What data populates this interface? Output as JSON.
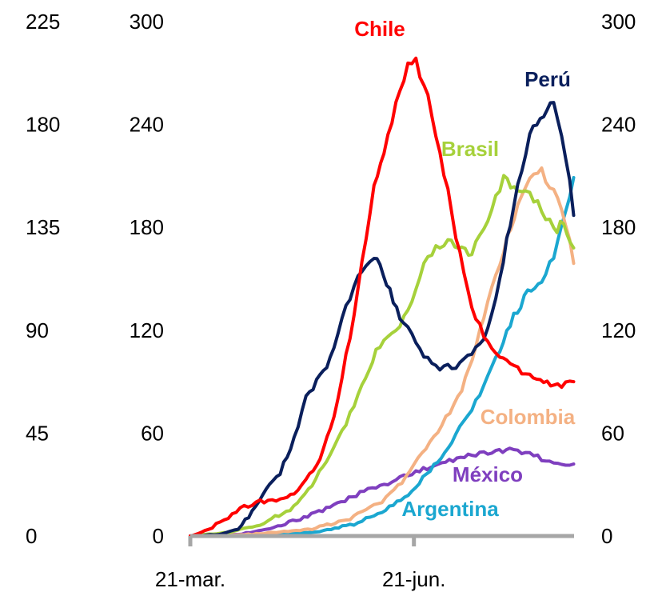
{
  "chart_data": {
    "type": "line",
    "title": "",
    "xlabel": "",
    "x_tick_labels": [
      "21-mar.",
      "21-jun."
    ],
    "left_outer_axis": {
      "ticks": [
        0,
        45,
        90,
        135,
        180,
        225
      ],
      "ylim": [
        0,
        225
      ]
    },
    "left_inner_axis": {
      "ticks": [
        0,
        60,
        120,
        180,
        240,
        300
      ],
      "ylim": [
        0,
        300
      ]
    },
    "right_axis": {
      "ticks": [
        0,
        60,
        120,
        180,
        240,
        300
      ],
      "ylim": [
        0,
        300
      ]
    },
    "xlim": [
      "2020-03-01",
      "2020-09-10"
    ],
    "grid": false,
    "legend": "direct labels",
    "series": [
      {
        "name": "Chile",
        "color": "#ff0000",
        "axis": "left",
        "points": [
          [
            "2020-03-01",
            0
          ],
          [
            "2020-03-10",
            4
          ],
          [
            "2020-03-20",
            11
          ],
          [
            "2020-03-28",
            17
          ],
          [
            "2020-04-05",
            20
          ],
          [
            "2020-04-15",
            21
          ],
          [
            "2020-04-22",
            24
          ],
          [
            "2020-04-28",
            32
          ],
          [
            "2020-05-05",
            45
          ],
          [
            "2020-05-12",
            70
          ],
          [
            "2020-05-18",
            105
          ],
          [
            "2020-05-22",
            127
          ],
          [
            "2020-05-26",
            160
          ],
          [
            "2020-06-01",
            205
          ],
          [
            "2020-06-06",
            222
          ],
          [
            "2020-06-12",
            252
          ],
          [
            "2020-06-18",
            275
          ],
          [
            "2020-06-22",
            276
          ],
          [
            "2020-06-28",
            258
          ],
          [
            "2020-07-04",
            225
          ],
          [
            "2020-07-10",
            188
          ],
          [
            "2020-07-16",
            153
          ],
          [
            "2020-07-22",
            127
          ],
          [
            "2020-07-28",
            112
          ],
          [
            "2020-08-03",
            104
          ],
          [
            "2020-08-10",
            98
          ],
          [
            "2020-08-18",
            94
          ],
          [
            "2020-08-25",
            89
          ],
          [
            "2020-09-01",
            87
          ],
          [
            "2020-09-07",
            89
          ],
          [
            "2020-09-09",
            90
          ]
        ]
      },
      {
        "name": "Perú",
        "color": "#0a1f5c",
        "axis": "left",
        "points": [
          [
            "2020-03-01",
            0
          ],
          [
            "2020-03-15",
            1
          ],
          [
            "2020-03-25",
            4
          ],
          [
            "2020-04-01",
            14
          ],
          [
            "2020-04-08",
            28
          ],
          [
            "2020-04-15",
            37
          ],
          [
            "2020-04-22",
            57
          ],
          [
            "2020-04-28",
            80
          ],
          [
            "2020-05-05",
            93
          ],
          [
            "2020-05-10",
            103
          ],
          [
            "2020-05-16",
            125
          ],
          [
            "2020-05-22",
            147
          ],
          [
            "2020-05-26",
            156
          ],
          [
            "2020-06-01",
            161
          ],
          [
            "2020-06-04",
            160
          ],
          [
            "2020-06-09",
            142
          ],
          [
            "2020-06-14",
            127
          ],
          [
            "2020-06-20",
            118
          ],
          [
            "2020-06-26",
            106
          ],
          [
            "2020-07-02",
            99
          ],
          [
            "2020-07-10",
            98
          ],
          [
            "2020-07-18",
            104
          ],
          [
            "2020-07-26",
            115
          ],
          [
            "2020-08-03",
            148
          ],
          [
            "2020-08-10",
            195
          ],
          [
            "2020-08-18",
            233
          ],
          [
            "2020-08-25",
            246
          ],
          [
            "2020-08-30",
            252
          ],
          [
            "2020-09-05",
            222
          ],
          [
            "2020-09-09",
            187
          ]
        ]
      },
      {
        "name": "Brasil",
        "color": "#a6d13b",
        "axis": "left",
        "points": [
          [
            "2020-03-01",
            0
          ],
          [
            "2020-03-20",
            2
          ],
          [
            "2020-04-05",
            7
          ],
          [
            "2020-04-20",
            15
          ],
          [
            "2020-05-01",
            30
          ],
          [
            "2020-05-10",
            48
          ],
          [
            "2020-05-18",
            66
          ],
          [
            "2020-05-26",
            87
          ],
          [
            "2020-06-02",
            108
          ],
          [
            "2020-06-08",
            118
          ],
          [
            "2020-06-14",
            124
          ],
          [
            "2020-06-20",
            137
          ],
          [
            "2020-06-26",
            157
          ],
          [
            "2020-07-02",
            170
          ],
          [
            "2020-07-08",
            172
          ],
          [
            "2020-07-15",
            167
          ],
          [
            "2020-07-20",
            165
          ],
          [
            "2020-07-26",
            178
          ],
          [
            "2020-08-01",
            200
          ],
          [
            "2020-08-05",
            208
          ],
          [
            "2020-08-12",
            204
          ],
          [
            "2020-08-18",
            200
          ],
          [
            "2020-08-24",
            191
          ],
          [
            "2020-08-30",
            178
          ],
          [
            "2020-09-04",
            183
          ],
          [
            "2020-09-09",
            168
          ]
        ]
      },
      {
        "name": "Colombia",
        "color": "#f4b183",
        "axis": "left",
        "points": [
          [
            "2020-03-01",
            0
          ],
          [
            "2020-04-01",
            1
          ],
          [
            "2020-05-01",
            4
          ],
          [
            "2020-05-20",
            10
          ],
          [
            "2020-06-05",
            20
          ],
          [
            "2020-06-15",
            31
          ],
          [
            "2020-06-25",
            48
          ],
          [
            "2020-07-05",
            65
          ],
          [
            "2020-07-15",
            85
          ],
          [
            "2020-07-22",
            110
          ],
          [
            "2020-07-28",
            138
          ],
          [
            "2020-08-05",
            168
          ],
          [
            "2020-08-12",
            191
          ],
          [
            "2020-08-18",
            206
          ],
          [
            "2020-08-24",
            212
          ],
          [
            "2020-08-30",
            202
          ],
          [
            "2020-09-05",
            183
          ],
          [
            "2020-09-09",
            159
          ]
        ]
      },
      {
        "name": "Argentina",
        "color": "#1ba7d0",
        "axis": "left",
        "points": [
          [
            "2020-03-01",
            0
          ],
          [
            "2020-04-01",
            0
          ],
          [
            "2020-05-01",
            2
          ],
          [
            "2020-05-20",
            6
          ],
          [
            "2020-06-05",
            14
          ],
          [
            "2020-06-20",
            26
          ],
          [
            "2020-07-01",
            41
          ],
          [
            "2020-07-10",
            55
          ],
          [
            "2020-07-18",
            70
          ],
          [
            "2020-07-26",
            88
          ],
          [
            "2020-08-03",
            108
          ],
          [
            "2020-08-10",
            128
          ],
          [
            "2020-08-17",
            142
          ],
          [
            "2020-08-24",
            148
          ],
          [
            "2020-08-30",
            162
          ],
          [
            "2020-09-05",
            188
          ],
          [
            "2020-09-09",
            209
          ]
        ]
      },
      {
        "name": "México",
        "color": "#7f3fbf",
        "axis": "left",
        "points": [
          [
            "2020-03-01",
            0
          ],
          [
            "2020-03-25",
            1
          ],
          [
            "2020-04-10",
            4
          ],
          [
            "2020-04-25",
            10
          ],
          [
            "2020-05-10",
            17
          ],
          [
            "2020-05-25",
            25
          ],
          [
            "2020-06-08",
            31
          ],
          [
            "2020-06-22",
            37
          ],
          [
            "2020-07-05",
            43
          ],
          [
            "2020-07-20",
            47
          ],
          [
            "2020-08-01",
            50
          ],
          [
            "2020-08-08",
            50
          ],
          [
            "2020-08-18",
            48
          ],
          [
            "2020-08-28",
            43
          ],
          [
            "2020-09-09",
            42
          ]
        ]
      }
    ],
    "label_colors": {
      "Chile": "#ff0000",
      "Perú": "#0a1f5c",
      "Brasil": "#a6d13b",
      "Colombia": "#f4b183",
      "México": "#7f3fbf",
      "Argentina": "#1ba7d0"
    },
    "axis_color": "#a6a6a6"
  }
}
